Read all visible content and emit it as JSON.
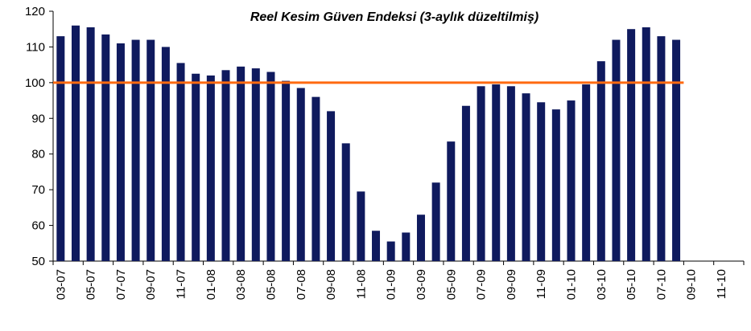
{
  "chart_data": {
    "type": "bar",
    "title": "Reel Kesim Güven Endeksi (3-aylık düzeltilmiş)",
    "categories": [
      "03-07",
      null,
      "05-07",
      null,
      "07-07",
      null,
      "09-07",
      null,
      "11-07",
      null,
      "01-08",
      null,
      "03-08",
      null,
      "05-08",
      null,
      "07-08",
      null,
      "09-08",
      null,
      "11-08",
      null,
      "01-09",
      null,
      "03-09",
      null,
      "05-09",
      null,
      "07-09",
      null,
      "09-09",
      null,
      "11-09",
      null,
      "01-10",
      null,
      "03-10",
      null,
      "05-10",
      null,
      "07-10",
      null,
      "09-10",
      null,
      "11-10",
      null
    ],
    "values": [
      113,
      116,
      115.5,
      113.5,
      111,
      112,
      112,
      110,
      105.5,
      102.5,
      102,
      103.5,
      104.5,
      104,
      103,
      100.5,
      98.5,
      96,
      92,
      83,
      69.5,
      58.5,
      55.5,
      58,
      63,
      72,
      83.5,
      93.5,
      99,
      99.5,
      99,
      97,
      94.5,
      92.5,
      95,
      99.5,
      106,
      112,
      115,
      115.5,
      113,
      112,
      null,
      null,
      null,
      null
    ],
    "color": "#0f1a5e",
    "reference_line": {
      "value": 100,
      "color": "#ff6a10"
    },
    "ylim": [
      50,
      120
    ],
    "yticks": [
      50,
      60,
      70,
      80,
      90,
      100,
      110,
      120
    ],
    "grid": false
  }
}
